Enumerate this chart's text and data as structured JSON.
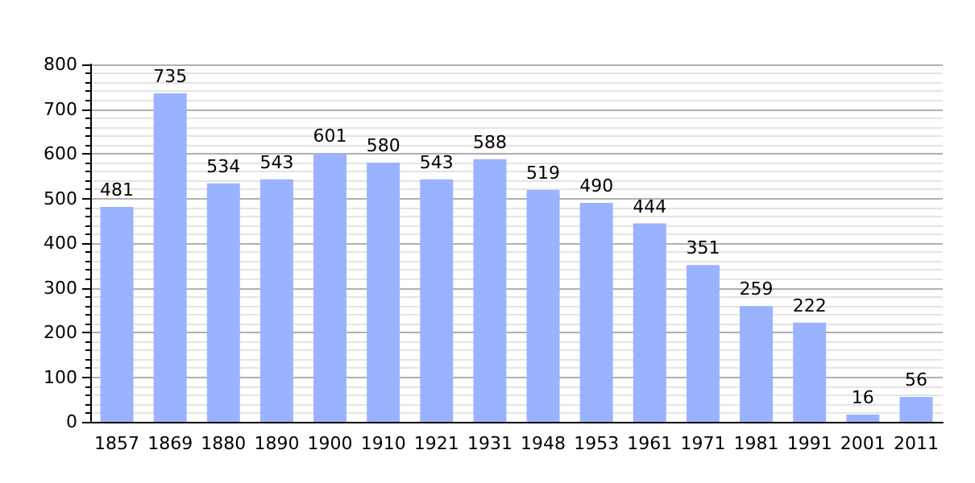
{
  "chart_data": {
    "type": "bar",
    "categories": [
      "1857",
      "1869",
      "1880",
      "1890",
      "1900",
      "1910",
      "1921",
      "1931",
      "1948",
      "1953",
      "1961",
      "1971",
      "1981",
      "1991",
      "2001",
      "2011"
    ],
    "values": [
      481,
      735,
      534,
      543,
      601,
      580,
      543,
      588,
      519,
      490,
      444,
      351,
      259,
      222,
      16,
      56
    ],
    "color": "#99b3ff",
    "ylim": [
      0,
      800
    ],
    "yticks": [
      0,
      100,
      200,
      300,
      400,
      500,
      600,
      700,
      800
    ],
    "grid": "y",
    "data_labels": true
  }
}
